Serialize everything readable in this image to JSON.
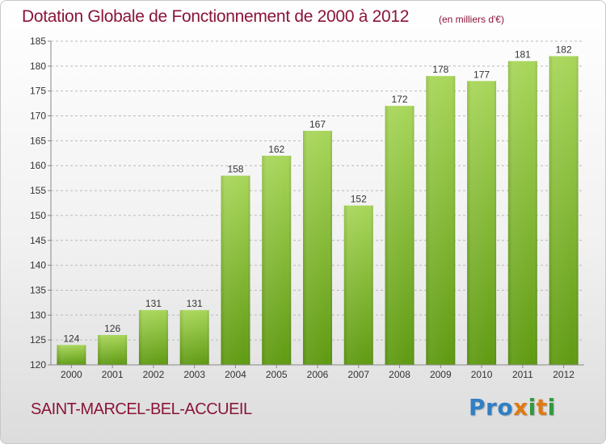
{
  "header": {
    "title": "Dotation Globale de Fonctionnement de 2000 à 2012",
    "subtitle": "(en milliers d'€)"
  },
  "footer": {
    "commune": "SAINT-MARCEL-BEL-ACCUEIL",
    "logo": [
      "P",
      "r",
      "o",
      "x",
      "i",
      "t",
      "i"
    ]
  },
  "colors": {
    "title": "#8a1538",
    "bar_top": "#a8d65a",
    "bar_bottom": "#5f9a12",
    "grid": "#b9b9b9",
    "logo": [
      "#2f7fc4",
      "#2f7fc4",
      "#2f7fc4",
      "#e07a10",
      "#2f9a3e",
      "#e07a10",
      "#2f9a3e"
    ]
  },
  "chart_data": {
    "type": "bar",
    "title": "Dotation Globale de Fonctionnement de 2000 à 2012",
    "subtitle": "(en milliers d'€)",
    "categories": [
      "2000",
      "2001",
      "2002",
      "2003",
      "2004",
      "2005",
      "2006",
      "2007",
      "2008",
      "2009",
      "2010",
      "2011",
      "2012"
    ],
    "values": [
      124,
      126,
      131,
      131,
      158,
      162,
      167,
      152,
      172,
      178,
      177,
      181,
      182
    ],
    "ylim": [
      120,
      185
    ],
    "yticks": [
      120,
      125,
      130,
      135,
      140,
      145,
      150,
      155,
      160,
      165,
      170,
      175,
      180,
      185
    ],
    "grid": true,
    "legend": "none"
  }
}
